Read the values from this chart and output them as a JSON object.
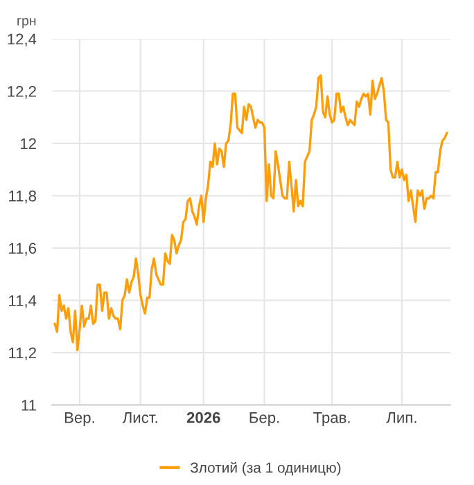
{
  "chart_data": {
    "type": "line",
    "ylabel": "грн",
    "legend": "bottom",
    "grid": true,
    "marker": "none",
    "line_style": "solid",
    "categories": [
      null,
      null,
      null,
      null,
      null,
      null,
      null,
      null,
      null,
      null,
      null,
      "Вер.",
      null,
      null,
      null,
      null,
      null,
      null,
      null,
      null,
      null,
      null,
      null,
      null,
      null,
      null,
      null,
      null,
      null,
      null,
      null,
      null,
      null,
      null,
      null,
      null,
      null,
      null,
      "Лист.",
      null,
      null,
      null,
      null,
      null,
      null,
      null,
      null,
      null,
      null,
      null,
      null,
      null,
      null,
      null,
      null,
      null,
      null,
      null,
      null,
      null,
      null,
      null,
      null,
      null,
      null,
      null,
      "2026",
      null,
      null,
      null,
      null,
      null,
      null,
      null,
      null,
      null,
      null,
      null,
      null,
      null,
      null,
      null,
      null,
      null,
      null,
      null,
      null,
      null,
      null,
      null,
      null,
      null,
      null,
      "Бер.",
      null,
      null,
      null,
      null,
      null,
      null,
      null,
      null,
      null,
      null,
      null,
      null,
      null,
      null,
      null,
      null,
      null,
      null,
      null,
      null,
      null,
      null,
      null,
      null,
      null,
      null,
      null,
      null,
      null,
      "Трав.",
      null,
      null,
      null,
      null,
      null,
      null,
      null,
      null,
      null,
      null,
      null,
      null,
      null,
      null,
      null,
      null,
      null,
      null,
      null,
      null,
      null,
      null,
      null,
      null,
      null,
      null,
      null,
      null,
      null,
      null,
      "Лип.",
      null,
      null,
      null,
      null,
      null,
      null,
      null,
      null,
      null,
      null,
      null,
      null,
      null,
      null,
      null,
      null,
      null,
      null,
      null,
      null
    ],
    "ylim": [
      11,
      12.4
    ],
    "yticks": [
      11,
      {
        "value": 11.2,
        "label": "11,2"
      },
      {
        "value": 11.4,
        "label": "11,4"
      },
      {
        "value": 11.6,
        "label": "11,6"
      },
      {
        "value": 11.8,
        "label": "11,8"
      },
      12,
      {
        "value": 12.2,
        "label": "12,2"
      },
      {
        "value": 12.4,
        "label": "12,4"
      }
    ],
    "series": [
      {
        "name": "Злотий (за 1 одиницю)",
        "color": "#ff9d0a",
        "values": [
          11.31,
          11.28,
          11.42,
          11.36,
          11.38,
          11.33,
          11.37,
          11.28,
          11.24,
          11.36,
          11.21,
          11.29,
          11.38,
          11.3,
          11.33,
          11.33,
          11.38,
          11.31,
          11.32,
          11.46,
          11.46,
          11.36,
          11.43,
          11.43,
          11.33,
          11.37,
          11.34,
          11.33,
          11.33,
          11.29,
          11.4,
          11.42,
          11.48,
          11.43,
          11.47,
          11.49,
          11.56,
          11.5,
          11.42,
          11.38,
          11.35,
          11.41,
          11.41,
          11.52,
          11.56,
          11.5,
          11.48,
          11.46,
          11.46,
          11.58,
          11.55,
          11.54,
          11.65,
          11.63,
          11.58,
          11.61,
          11.63,
          11.7,
          11.71,
          11.78,
          11.79,
          11.74,
          11.72,
          11.69,
          11.76,
          11.8,
          11.7,
          11.79,
          11.84,
          11.93,
          11.91,
          12.0,
          11.92,
          11.98,
          11.97,
          11.91,
          12.0,
          12.01,
          12.07,
          12.19,
          12.19,
          12.06,
          12.05,
          12.04,
          12.14,
          12.09,
          12.15,
          12.14,
          12.1,
          12.06,
          12.09,
          12.08,
          12.08,
          12.06,
          11.78,
          11.92,
          11.8,
          11.79,
          11.97,
          11.92,
          11.86,
          11.8,
          11.79,
          11.79,
          11.93,
          11.84,
          11.74,
          11.86,
          11.76,
          11.78,
          11.76,
          11.93,
          11.95,
          11.97,
          12.09,
          12.11,
          12.14,
          12.25,
          12.26,
          12.12,
          12.1,
          12.18,
          12.11,
          12.08,
          12.09,
          12.19,
          12.19,
          12.12,
          12.14,
          12.1,
          12.07,
          12.09,
          12.08,
          12.07,
          12.16,
          12.14,
          12.17,
          12.19,
          12.18,
          12.19,
          12.11,
          12.24,
          12.17,
          12.19,
          12.22,
          12.25,
          12.2,
          12.09,
          12.08,
          11.9,
          11.87,
          11.87,
          11.93,
          11.87,
          11.9,
          11.86,
          11.88,
          11.78,
          11.82,
          11.76,
          11.7,
          11.82,
          11.8,
          11.82,
          11.75,
          11.79,
          11.79,
          11.8,
          11.79,
          11.89,
          11.89,
          11.97,
          12.01,
          12.02,
          12.04
        ]
      }
    ]
  }
}
